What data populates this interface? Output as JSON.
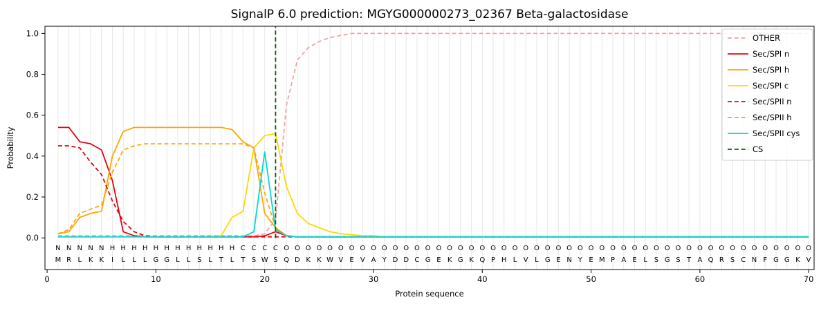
{
  "chart_data": {
    "type": "line",
    "title": "SignalP 6.0 prediction: MGYG000000273_02367 Beta-galactosidase",
    "xlabel": "Protein sequence",
    "ylabel": "Probability",
    "xticks": [
      0,
      10,
      20,
      30,
      40,
      50,
      60,
      70
    ],
    "yticks": [
      0.0,
      0.2,
      0.4,
      0.6,
      0.8,
      1.0
    ],
    "xlim": [
      -0.2,
      70.5
    ],
    "ylim": [
      -0.155,
      1.035
    ],
    "grid": "vertical-per-residue",
    "legend_position": "upper right",
    "n_positions": 70,
    "sequence": "MRLKKILLLGGLLSLTLTSWSQDKKWVEVAYDDCGEKGKQPHLVLGENYEMPAELSGSTAQRSCNFGGKV",
    "regions": [
      {
        "label": "N",
        "start": 1,
        "end": 5,
        "color": "#e8000b"
      },
      {
        "label": "H",
        "start": 6,
        "end": 17,
        "color": "#ffa500"
      },
      {
        "label": "C",
        "start": 18,
        "end": 21,
        "color": "#ffd700"
      },
      {
        "label": "O",
        "start": 22,
        "end": 70,
        "color": "#999999"
      }
    ],
    "colors": {
      "grid": "#e7e7e7",
      "axis": "#000000",
      "background": "#ffffff",
      "sequence_text": "#1a1a1a"
    },
    "cs_line": {
      "name": "CS",
      "x": 21,
      "color": "#006400",
      "dash": "6,3.8"
    },
    "series": [
      {
        "name": "OTHER",
        "color": "#f2a1a4",
        "dash": "6,3.8",
        "values": [
          0.01,
          0.01,
          0.01,
          0.01,
          0.01,
          0.01,
          0.01,
          0.01,
          0.01,
          0.01,
          0.01,
          0.01,
          0.01,
          0.01,
          0.01,
          0.01,
          0.01,
          0.01,
          0.01,
          0.02,
          0.09,
          0.65,
          0.87,
          0.93,
          0.96,
          0.98,
          0.99,
          1.0,
          1.0,
          1.0,
          1.0,
          1.0,
          1.0,
          1.0,
          1.0,
          1.0,
          1.0,
          1.0,
          1.0,
          1.0,
          1.0,
          1.0,
          1.0,
          1.0,
          1.0,
          1.0,
          1.0,
          1.0,
          1.0,
          1.0,
          1.0,
          1.0,
          1.0,
          1.0,
          1.0,
          1.0,
          1.0,
          1.0,
          1.0,
          1.0,
          1.0,
          1.0,
          1.0,
          1.0,
          1.0,
          1.0,
          1.0,
          1.0,
          1.0,
          1.0
        ]
      },
      {
        "name": "Sec/SPI n",
        "color": "#e8000b",
        "dash": null,
        "values": [
          0.54,
          0.54,
          0.47,
          0.46,
          0.43,
          0.28,
          0.03,
          0.01,
          0.005,
          0.005,
          0.005,
          0.005,
          0.005,
          0.005,
          0.005,
          0.005,
          0.005,
          0.005,
          0.005,
          0.01,
          0.03,
          0.01,
          0.005,
          0.005,
          0.005,
          0.005,
          0.005,
          0.005,
          0.005,
          0.005,
          0.005,
          0.005,
          0.005,
          0.005,
          0.005,
          0.005,
          0.005,
          0.005,
          0.005,
          0.005,
          0.005,
          0.005,
          0.005,
          0.005,
          0.005,
          0.005,
          0.005,
          0.005,
          0.005,
          0.005,
          0.005,
          0.005,
          0.005,
          0.005,
          0.005,
          0.005,
          0.005,
          0.005,
          0.005,
          0.005,
          0.005,
          0.005,
          0.005,
          0.005,
          0.005,
          0.005,
          0.005,
          0.005,
          0.005,
          0.005
        ]
      },
      {
        "name": "Sec/SPI h",
        "color": "#ffa500",
        "dash": null,
        "values": [
          0.02,
          0.03,
          0.1,
          0.12,
          0.13,
          0.4,
          0.52,
          0.54,
          0.54,
          0.54,
          0.54,
          0.54,
          0.54,
          0.54,
          0.54,
          0.54,
          0.53,
          0.47,
          0.44,
          0.12,
          0.05,
          0.01,
          0.005,
          0.005,
          0.005,
          0.005,
          0.005,
          0.005,
          0.005,
          0.005,
          0.005,
          0.005,
          0.005,
          0.005,
          0.005,
          0.005,
          0.005,
          0.005,
          0.005,
          0.005,
          0.005,
          0.005,
          0.005,
          0.005,
          0.005,
          0.005,
          0.005,
          0.005,
          0.005,
          0.005,
          0.005,
          0.005,
          0.005,
          0.005,
          0.005,
          0.005,
          0.005,
          0.005,
          0.005,
          0.005,
          0.005,
          0.005,
          0.005,
          0.005,
          0.005,
          0.005,
          0.005,
          0.005,
          0.005,
          0.005
        ]
      },
      {
        "name": "Sec/SPI c",
        "color": "#ffd700",
        "dash": null,
        "values": [
          0.005,
          0.005,
          0.005,
          0.005,
          0.005,
          0.005,
          0.005,
          0.005,
          0.005,
          0.005,
          0.005,
          0.005,
          0.005,
          0.005,
          0.005,
          0.01,
          0.1,
          0.13,
          0.44,
          0.5,
          0.51,
          0.25,
          0.12,
          0.07,
          0.05,
          0.03,
          0.02,
          0.015,
          0.01,
          0.01,
          0.005,
          0.005,
          0.005,
          0.005,
          0.005,
          0.005,
          0.005,
          0.005,
          0.005,
          0.005,
          0.005,
          0.005,
          0.005,
          0.005,
          0.005,
          0.005,
          0.005,
          0.005,
          0.005,
          0.005,
          0.005,
          0.005,
          0.005,
          0.005,
          0.005,
          0.005,
          0.005,
          0.005,
          0.005,
          0.005,
          0.005,
          0.005,
          0.005,
          0.005,
          0.005,
          0.005,
          0.005,
          0.005,
          0.005,
          0.005
        ]
      },
      {
        "name": "Sec/SPII n",
        "color": "#e8000b",
        "dash": "6,3.8",
        "values": [
          0.45,
          0.45,
          0.44,
          0.37,
          0.31,
          0.18,
          0.08,
          0.03,
          0.01,
          0.005,
          0.005,
          0.005,
          0.005,
          0.005,
          0.005,
          0.005,
          0.005,
          0.005,
          0.005,
          0.005,
          0.005,
          0.005,
          0.005,
          0.005,
          0.005,
          0.005,
          0.005,
          0.005,
          0.005,
          0.005,
          0.005,
          0.005,
          0.005,
          0.005,
          0.005,
          0.005,
          0.005,
          0.005,
          0.005,
          0.005,
          0.005,
          0.005,
          0.005,
          0.005,
          0.005,
          0.005,
          0.005,
          0.005,
          0.005,
          0.005,
          0.005,
          0.005,
          0.005,
          0.005,
          0.005,
          0.005,
          0.005,
          0.005,
          0.005,
          0.005,
          0.005,
          0.005,
          0.005,
          0.005,
          0.005,
          0.005,
          0.005,
          0.005,
          0.005,
          0.005
        ]
      },
      {
        "name": "Sec/SPII h",
        "color": "#ffa500",
        "dash": "6,3.8",
        "values": [
          0.02,
          0.04,
          0.12,
          0.14,
          0.16,
          0.32,
          0.43,
          0.45,
          0.46,
          0.46,
          0.46,
          0.46,
          0.46,
          0.46,
          0.46,
          0.46,
          0.46,
          0.46,
          0.44,
          0.22,
          0.05,
          0.01,
          0.005,
          0.005,
          0.005,
          0.005,
          0.005,
          0.005,
          0.005,
          0.005,
          0.005,
          0.005,
          0.005,
          0.005,
          0.005,
          0.005,
          0.005,
          0.005,
          0.005,
          0.005,
          0.005,
          0.005,
          0.005,
          0.005,
          0.005,
          0.005,
          0.005,
          0.005,
          0.005,
          0.005,
          0.005,
          0.005,
          0.005,
          0.005,
          0.005,
          0.005,
          0.005,
          0.005,
          0.005,
          0.005,
          0.005,
          0.005,
          0.005,
          0.005,
          0.005,
          0.005,
          0.005,
          0.005,
          0.005,
          0.005
        ]
      },
      {
        "name": "Sec/SPII cys",
        "color": "#00d7d7",
        "dash": null,
        "values": [
          0.005,
          0.005,
          0.005,
          0.005,
          0.005,
          0.005,
          0.005,
          0.005,
          0.005,
          0.005,
          0.005,
          0.005,
          0.005,
          0.005,
          0.005,
          0.005,
          0.005,
          0.005,
          0.03,
          0.42,
          0.04,
          0.01,
          0.005,
          0.005,
          0.005,
          0.005,
          0.005,
          0.005,
          0.005,
          0.005,
          0.005,
          0.005,
          0.005,
          0.005,
          0.005,
          0.005,
          0.005,
          0.005,
          0.005,
          0.005,
          0.005,
          0.005,
          0.005,
          0.005,
          0.005,
          0.005,
          0.005,
          0.005,
          0.005,
          0.005,
          0.005,
          0.005,
          0.005,
          0.005,
          0.005,
          0.005,
          0.005,
          0.005,
          0.005,
          0.005,
          0.005,
          0.005,
          0.005,
          0.005,
          0.005,
          0.005,
          0.005,
          0.005,
          0.005,
          0.005
        ]
      }
    ]
  }
}
